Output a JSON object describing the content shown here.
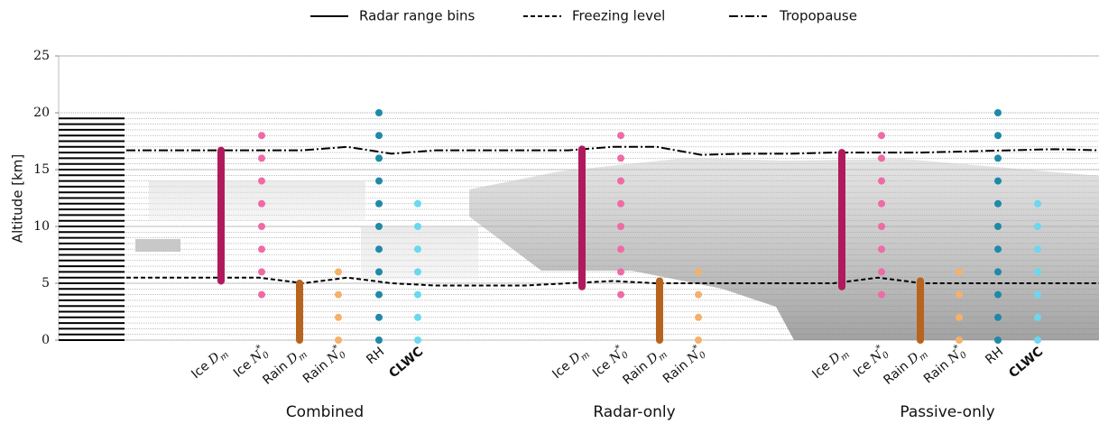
{
  "chart_data": {
    "type": "profile",
    "legend": [
      "Radar range bins",
      "Freezing level",
      "Tropopause"
    ],
    "ylabel": "Altitude [km]",
    "ylim": [
      0,
      25
    ],
    "yticks": [
      0,
      5,
      10,
      15,
      20,
      25
    ],
    "radar_range_bins": {
      "ylim": [
        0,
        19.5
      ],
      "step": 0.5
    },
    "tropopause": [
      16.7,
      16.7,
      16.7,
      16.7,
      16.7,
      17.0,
      16.4,
      16.7,
      16.7,
      16.7,
      16.7,
      17.0,
      17.0,
      16.3,
      16.4,
      16.4,
      16.5,
      16.5,
      16.5,
      16.6,
      16.7,
      16.8,
      16.7
    ],
    "freezing_level": [
      5.5,
      5.5,
      5.5,
      5.5,
      5.0,
      5.5,
      5.0,
      4.8,
      4.8,
      4.8,
      5.0,
      5.2,
      5.0,
      5.0,
      5.0,
      5.0,
      5.0,
      5.5,
      5.0,
      5.0,
      5.0,
      5.0,
      5.0
    ],
    "groups": [
      {
        "name": "Combined",
        "variables": [
          {
            "prefix": "Ice",
            "symbol": "D",
            "sub": "m",
            "kind": "range",
            "color": "#b01a5c",
            "values": [
              5.2,
              16.7
            ]
          },
          {
            "prefix": "Ice",
            "symbol": "N",
            "sub": "0",
            "sup": "*",
            "color": "#ef6aa6",
            "values": [
              4,
              6,
              8,
              10,
              12,
              14,
              16,
              18
            ]
          },
          {
            "prefix": "Rain",
            "symbol": "D",
            "sub": "m",
            "kind": "range",
            "color": "#b8641e",
            "values": [
              0,
              5.0
            ]
          },
          {
            "prefix": "Rain",
            "symbol": "N",
            "sub": "0",
            "sup": "*",
            "color": "#f5b06a",
            "values": [
              0,
              2,
              4,
              6
            ]
          },
          {
            "prefix": "RH",
            "color": "#1e8aa8",
            "values": [
              0,
              2,
              4,
              6,
              8,
              10,
              12,
              14,
              16,
              18,
              20
            ]
          },
          {
            "prefix": "CLWC",
            "bold": true,
            "color": "#6ad8ee",
            "values": [
              0,
              2,
              4,
              6,
              8,
              10,
              12
            ]
          }
        ]
      },
      {
        "name": "Radar-only",
        "variables": [
          {
            "prefix": "Ice",
            "symbol": "D",
            "sub": "m",
            "kind": "range",
            "color": "#b01a5c",
            "values": [
              4.7,
              16.8
            ]
          },
          {
            "prefix": "Ice",
            "symbol": "N",
            "sub": "0",
            "sup": "*",
            "color": "#ef6aa6",
            "values": [
              4,
              6,
              8,
              10,
              12,
              14,
              16,
              18
            ]
          },
          {
            "prefix": "Rain",
            "symbol": "D",
            "sub": "m",
            "kind": "range",
            "color": "#b8641e",
            "values": [
              0,
              5.2
            ]
          },
          {
            "prefix": "Rain",
            "symbol": "N",
            "sub": "0",
            "sup": "*",
            "color": "#f5b06a",
            "values": [
              0,
              2,
              4,
              6
            ]
          }
        ]
      },
      {
        "name": "Passive-only",
        "variables": [
          {
            "prefix": "Ice",
            "symbol": "D",
            "sub": "m",
            "kind": "range",
            "color": "#b01a5c",
            "values": [
              4.7,
              16.5
            ]
          },
          {
            "prefix": "Ice",
            "symbol": "N",
            "sub": "0",
            "sup": "*",
            "color": "#ef6aa6",
            "values": [
              4,
              6,
              8,
              10,
              12,
              14,
              16,
              18
            ]
          },
          {
            "prefix": "Rain",
            "symbol": "D",
            "sub": "m",
            "kind": "range",
            "color": "#b8641e",
            "values": [
              0,
              5.2
            ]
          },
          {
            "prefix": "Rain",
            "symbol": "N",
            "sub": "0",
            "sup": "*",
            "color": "#f5b06a",
            "values": [
              0,
              2,
              4,
              6
            ]
          },
          {
            "prefix": "RH",
            "color": "#1e8aa8",
            "values": [
              0,
              2,
              4,
              6,
              8,
              10,
              12,
              14,
              16,
              18,
              20
            ]
          },
          {
            "prefix": "CLWC",
            "bold": true,
            "color": "#6ad8ee",
            "values": [
              0,
              2,
              4,
              6,
              8,
              10,
              12
            ]
          }
        ]
      }
    ]
  }
}
